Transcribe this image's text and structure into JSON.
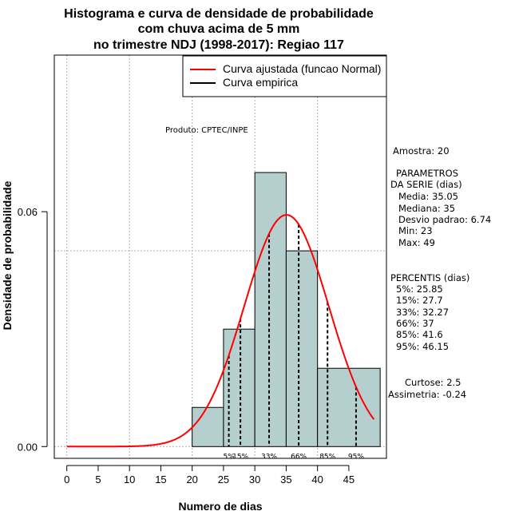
{
  "chart_data": {
    "type": "histogram",
    "title": [
      "Histograma e curva de densidade de probabilidade",
      "com chuva acima de 5 mm",
      "no trimestre NDJ (1998-2017): Regiao 117"
    ],
    "xlabel": "Numero de dias",
    "ylabel": "Densidade de probabilidade",
    "xlim": [
      -2,
      51
    ],
    "ylim": [
      -0.003,
      0.1
    ],
    "x_ticks": [
      0,
      5,
      10,
      15,
      20,
      25,
      30,
      35,
      40,
      45
    ],
    "x_tick_labels": [
      "0",
      "5",
      "10",
      "15",
      "20",
      "25",
      "30",
      "35",
      "40",
      "45"
    ],
    "y_ticks": [
      0.0,
      0.06
    ],
    "y_tick_labels": [
      "0.00",
      "0.06"
    ],
    "grid_x": [
      0,
      10,
      20,
      30,
      40
    ],
    "grid_y": [
      0.0,
      0.05,
      0.1
    ],
    "bins": [
      {
        "start": 20,
        "end": 25,
        "density": 0.01
      },
      {
        "start": 25,
        "end": 30,
        "density": 0.03
      },
      {
        "start": 30,
        "end": 35,
        "density": 0.07
      },
      {
        "start": 35,
        "end": 40,
        "density": 0.05
      },
      {
        "start": 40,
        "end": 50,
        "density": 0.02
      }
    ],
    "normal_curve": {
      "mean": 35.05,
      "sd": 6.74,
      "x_start": 0,
      "x_end": 49,
      "color": "#ff0000"
    },
    "bar_fill": "#b5cfcf",
    "percentile_lines": [
      {
        "x": 25.85,
        "label": "5%"
      },
      {
        "x": 27.7,
        "label": "15%"
      },
      {
        "x": 32.27,
        "label": "33%"
      },
      {
        "x": 37,
        "label": "66%"
      },
      {
        "x": 41.6,
        "label": "85%"
      },
      {
        "x": 46.15,
        "label": "95%"
      }
    ],
    "legend": [
      {
        "label": "Curva ajustada (funcao Normal)",
        "color": "#ff0000"
      },
      {
        "label": "Curva empirica",
        "color": "#000000"
      }
    ],
    "legend_position": "top-right",
    "credit": "Produto: CPTEC/INPE"
  },
  "stats": {
    "sample": "Amostra: 20",
    "params_title": "PARAMETROS",
    "params_subtitle": "DA SERIE (dias)",
    "params": [
      "Media: 35.05",
      "Mediana: 35",
      "Desvio padrao: 6.74",
      "Min: 23",
      "Max: 49"
    ],
    "pct_title": "PERCENTIS (dias)",
    "pcts": [
      "5%: 25.85",
      "15%: 27.7",
      "33%: 32.27",
      "66%: 37",
      "85%: 41.6",
      "95%: 46.15"
    ],
    "curtose": "Curtose: 2.5",
    "assimetria": "Assimetria: -0.24"
  }
}
